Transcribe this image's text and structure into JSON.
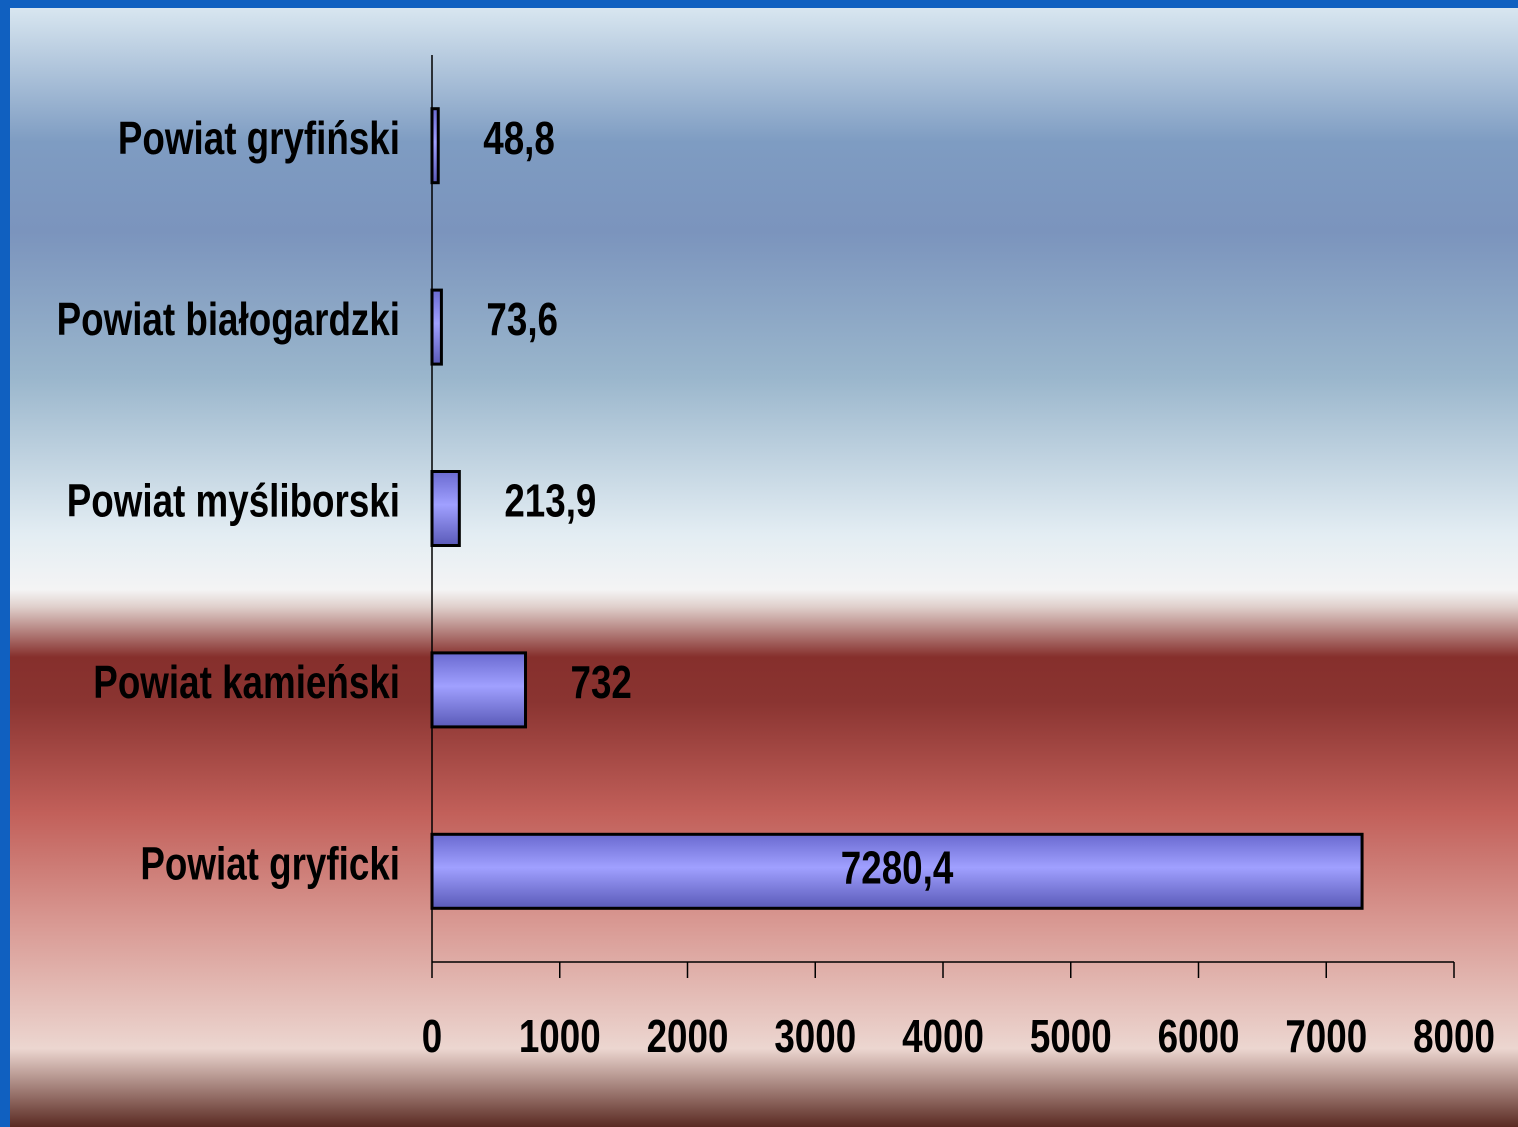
{
  "chart_data": {
    "type": "hbar",
    "categories": [
      "Powiat gryfiński",
      "Powiat białogardzki",
      "Powiat myśliborski",
      "Powiat kamieński",
      "Powiat gryficki"
    ],
    "values": [
      48.8,
      73.6,
      213.9,
      732,
      7280.4
    ],
    "value_labels": [
      "48,8",
      "73,6",
      "213,9",
      "732",
      "7280,4"
    ],
    "color": "#9999ff",
    "xlim": [
      0,
      8000
    ],
    "xticks": [
      0,
      1000,
      2000,
      3000,
      4000,
      5000,
      6000,
      7000,
      8000
    ]
  }
}
